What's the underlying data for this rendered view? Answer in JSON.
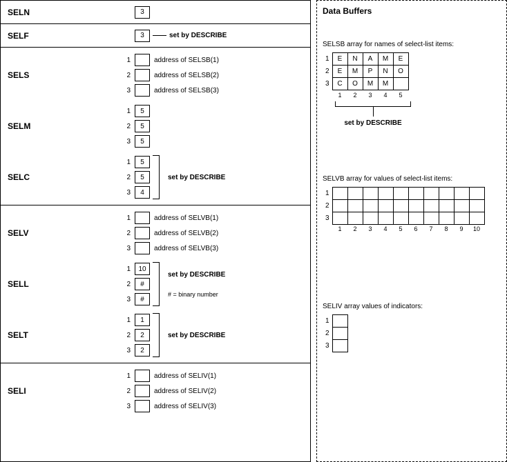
{
  "left": {
    "seln": {
      "label": "SELN",
      "value": "3"
    },
    "self": {
      "label": "SELF",
      "value": "3",
      "annot": "set by DESCRIBE"
    },
    "sels": {
      "label": "SELS",
      "rows": [
        {
          "idx": "1",
          "val": "",
          "desc": "address of SELSB(1)"
        },
        {
          "idx": "2",
          "val": "",
          "desc": "address of SELSB(2)"
        },
        {
          "idx": "3",
          "val": "",
          "desc": "address of SELSB(3)"
        }
      ]
    },
    "selm": {
      "label": "SELM",
      "rows": [
        {
          "idx": "1",
          "val": "5"
        },
        {
          "idx": "2",
          "val": "5"
        },
        {
          "idx": "3",
          "val": "5"
        }
      ]
    },
    "selc": {
      "label": "SELC",
      "annot": "set by DESCRIBE",
      "rows": [
        {
          "idx": "1",
          "val": "5"
        },
        {
          "idx": "2",
          "val": "5"
        },
        {
          "idx": "3",
          "val": "4"
        }
      ]
    },
    "selv": {
      "label": "SELV",
      "rows": [
        {
          "idx": "1",
          "val": "",
          "desc": "address of SELVB(1)"
        },
        {
          "idx": "2",
          "val": "",
          "desc": "address of SELVB(2)"
        },
        {
          "idx": "3",
          "val": "",
          "desc": "address of SELVB(3)"
        }
      ]
    },
    "sell": {
      "label": "SELL",
      "annot": "set by DESCRIBE",
      "note": "# = binary number",
      "rows": [
        {
          "idx": "1",
          "val": "10"
        },
        {
          "idx": "2",
          "val": "#"
        },
        {
          "idx": "3",
          "val": "#"
        }
      ]
    },
    "selt": {
      "label": "SELT",
      "annot": "set by DESCRIBE",
      "rows": [
        {
          "idx": "1",
          "val": "1"
        },
        {
          "idx": "2",
          "val": "2"
        },
        {
          "idx": "3",
          "val": "2"
        }
      ]
    },
    "seli": {
      "label": "SELI",
      "rows": [
        {
          "idx": "1",
          "val": "",
          "desc": "address of SELIV(1)"
        },
        {
          "idx": "2",
          "val": "",
          "desc": "address of SELIV(2)"
        },
        {
          "idx": "3",
          "val": "",
          "desc": "address of SELIV(3)"
        }
      ]
    }
  },
  "right": {
    "title": "Data Buffers",
    "selsb": {
      "text": "SELSB array for names of select-list items:",
      "rows": [
        [
          "E",
          "N",
          "A",
          "M",
          "E"
        ],
        [
          "E",
          "M",
          "P",
          "N",
          "O"
        ],
        [
          "C",
          "O",
          "M",
          "M",
          ""
        ]
      ],
      "cols": [
        "1",
        "2",
        "3",
        "4",
        "5"
      ],
      "annot": "set by DESCRIBE"
    },
    "selvb": {
      "text": "SELVB array for values of select-list items:",
      "rows": 3,
      "cols": [
        "1",
        "2",
        "3",
        "4",
        "5",
        "6",
        "7",
        "8",
        "9",
        "10"
      ]
    },
    "seliv": {
      "text": "SELIV array values of indicators:",
      "rows": [
        "1",
        "2",
        "3"
      ]
    }
  }
}
